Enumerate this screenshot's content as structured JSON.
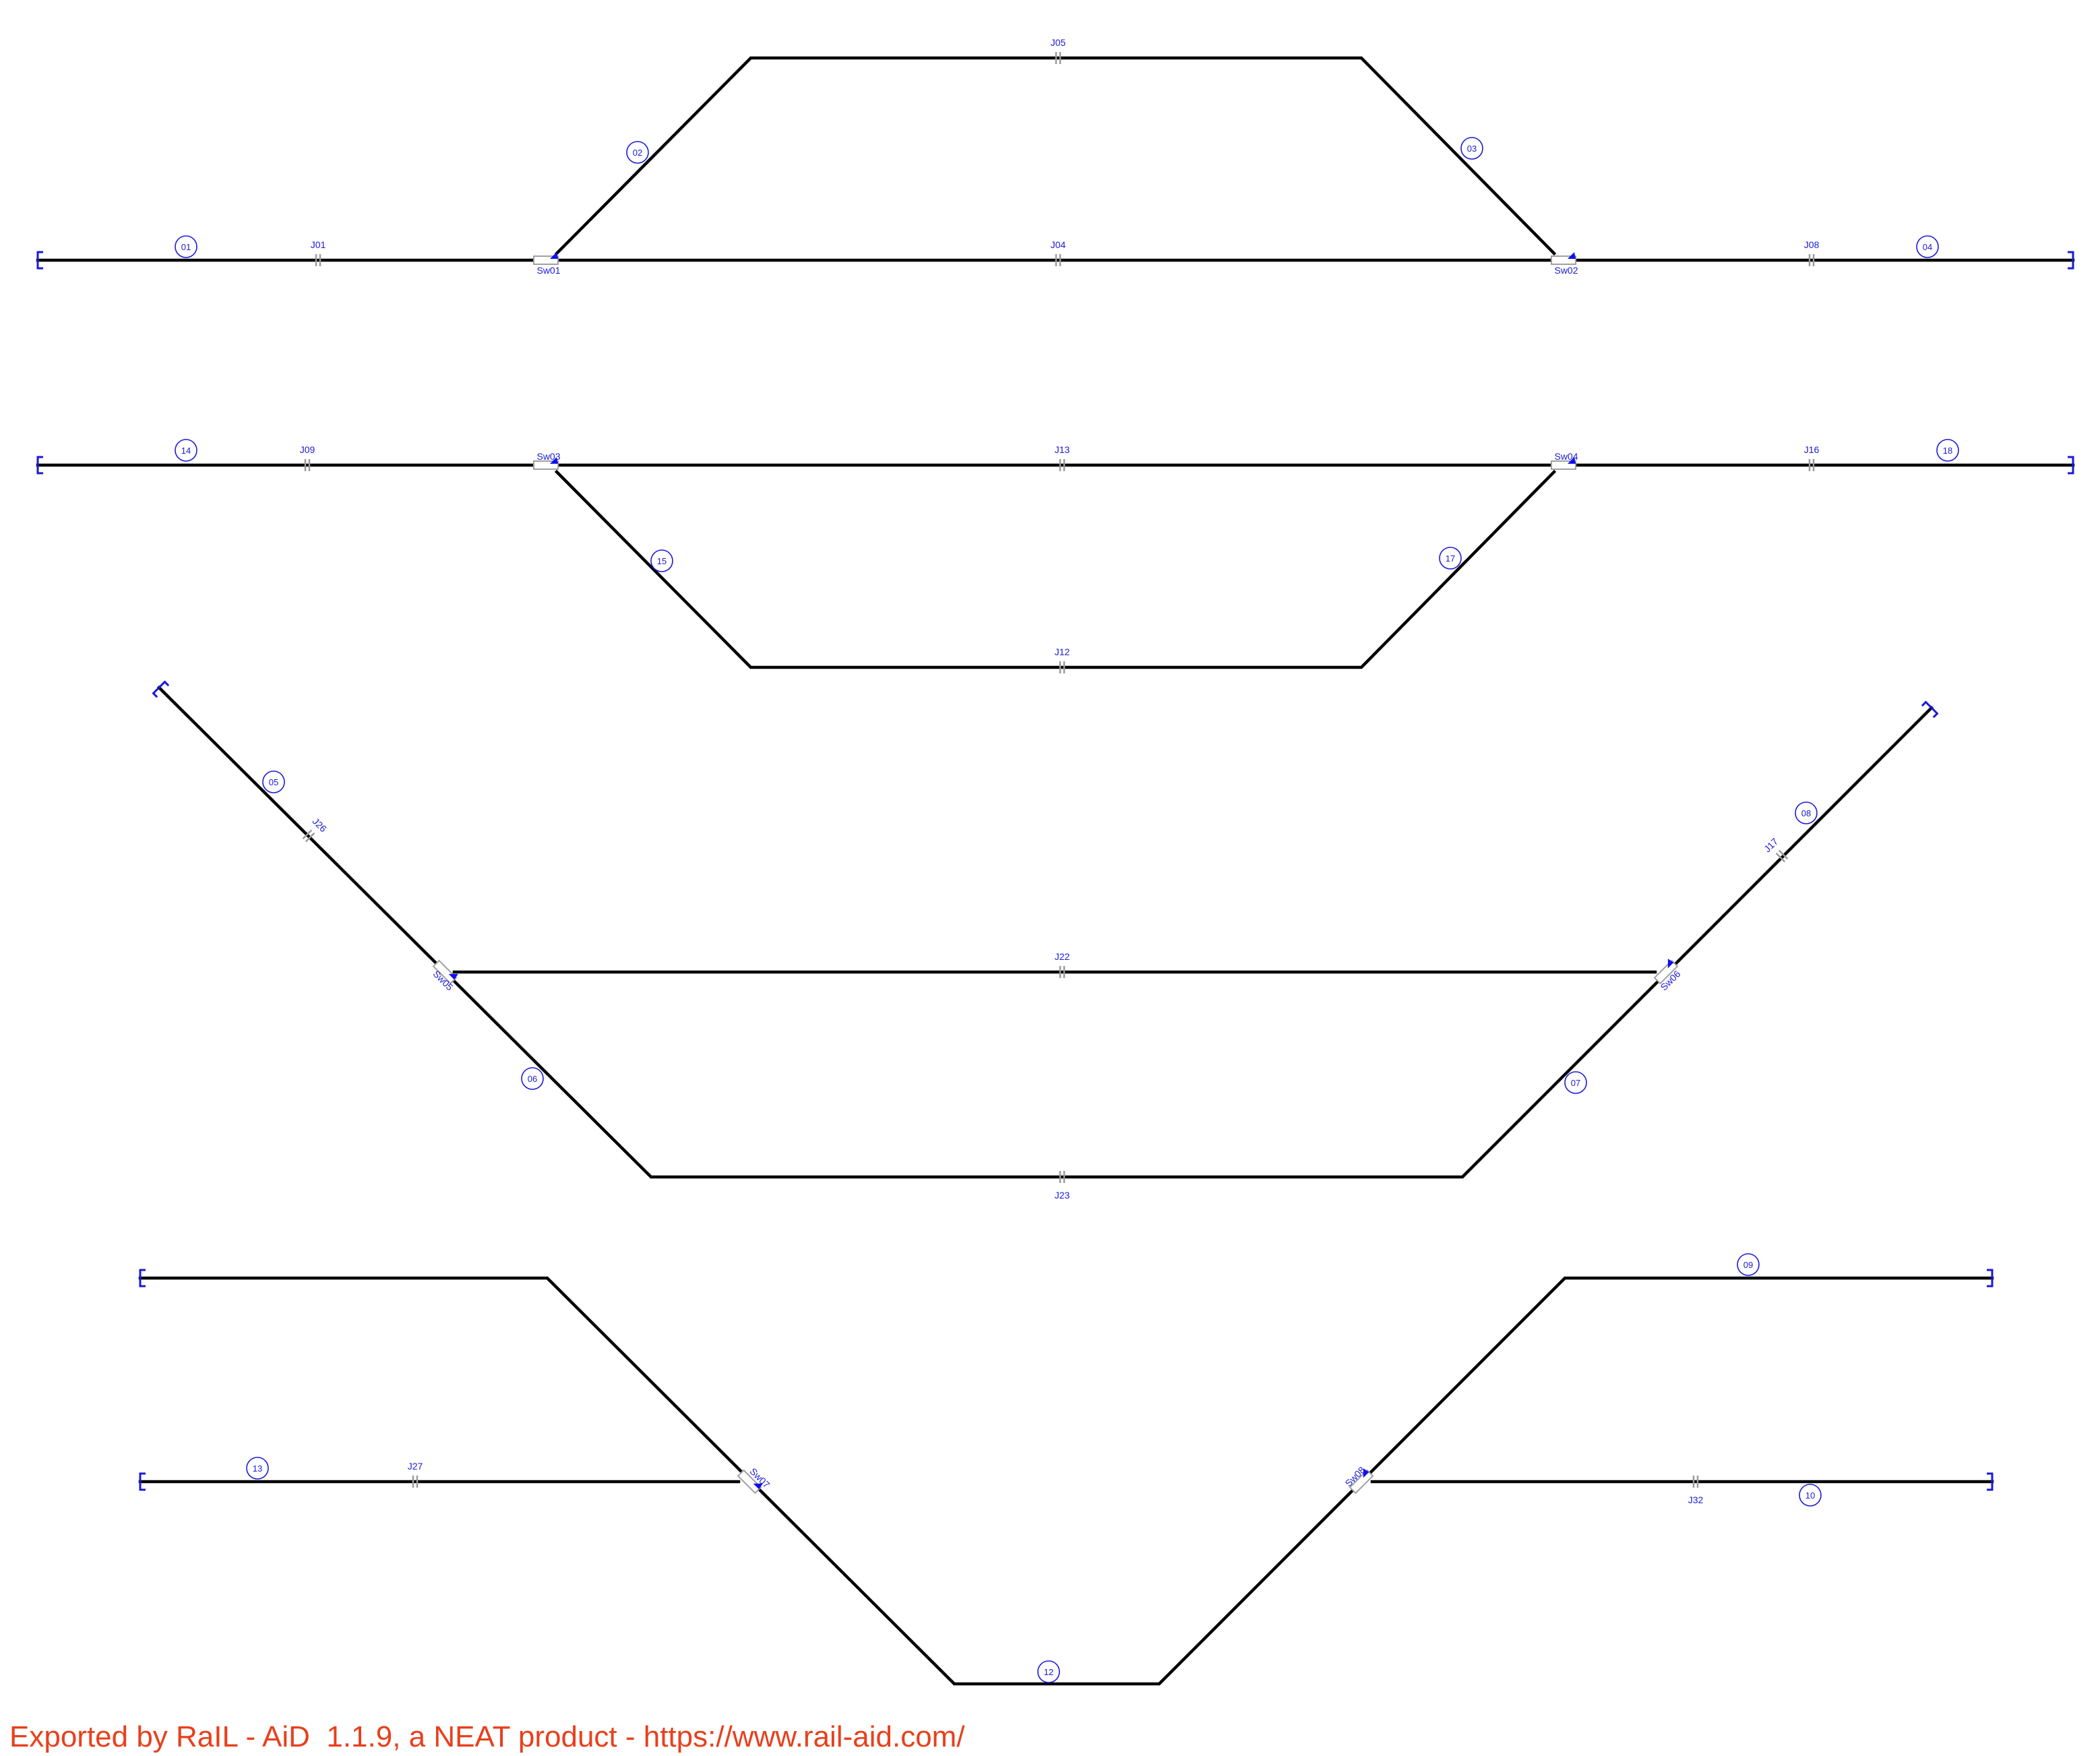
{
  "tracks": [
    {
      "id": "01"
    },
    {
      "id": "02"
    },
    {
      "id": "03"
    },
    {
      "id": "04"
    },
    {
      "id": "05"
    },
    {
      "id": "06"
    },
    {
      "id": "07"
    },
    {
      "id": "08"
    },
    {
      "id": "09"
    },
    {
      "id": "10"
    },
    {
      "id": "12"
    },
    {
      "id": "13"
    },
    {
      "id": "14"
    },
    {
      "id": "15"
    },
    {
      "id": "17"
    },
    {
      "id": "18"
    }
  ],
  "switches": [
    "Sw01",
    "Sw02",
    "Sw03",
    "Sw04",
    "Sw05",
    "Sw06",
    "Sw07",
    "Sw08"
  ],
  "joints": [
    "J01",
    "J04",
    "J05",
    "J08",
    "J09",
    "J12",
    "J13",
    "J16",
    "J17",
    "J22",
    "J23",
    "J26",
    "J27",
    "J32"
  ],
  "colors": {
    "track": "#000000",
    "label": "#1a1ad8",
    "joint": "#9a9a9a",
    "footer": "#e8401c"
  },
  "footer": "Exported by RaIL - AiD  1.1.9, a NEAT product - https://www.rail-aid.com/"
}
